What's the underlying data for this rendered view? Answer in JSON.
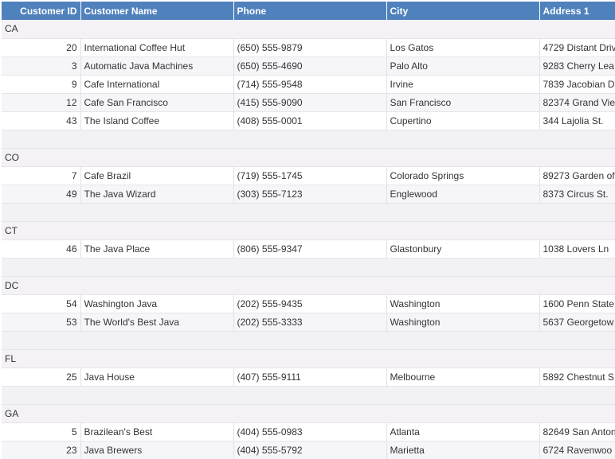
{
  "table": {
    "headers": [
      "Customer ID",
      "Customer Name",
      "Phone",
      "City",
      "Address 1"
    ],
    "groups": [
      {
        "label": "CA",
        "rows": [
          [
            20,
            "International Coffee Hut",
            "(650) 555-9879",
            "Los Gatos",
            "4729 Distant Driv"
          ],
          [
            3,
            "Automatic Java Machines",
            "(650) 555-4690",
            "Palo Alto",
            "9283 Cherry Lea"
          ],
          [
            9,
            "Cafe International",
            "(714) 555-9548",
            "Irvine",
            "7839 Jacobian D"
          ],
          [
            12,
            "Cafe San Francisco",
            "(415) 555-9090",
            "San Francisco",
            "82374 Grand Vie"
          ],
          [
            43,
            "The Island Coffee",
            "(408) 555-0001",
            "Cupertino",
            "344 Lajolia St."
          ]
        ]
      },
      {
        "label": "CO",
        "rows": [
          [
            7,
            "Cafe Brazil",
            "(719) 555-1745",
            "Colorado Springs",
            "89273 Garden of"
          ],
          [
            49,
            "The Java Wizard",
            "(303) 555-7123",
            "Englewood",
            "8373 Circus St."
          ]
        ]
      },
      {
        "label": "CT",
        "rows": [
          [
            46,
            "The Java Place",
            "(806) 555-9347",
            "Glastonbury",
            "1038 Lovers Ln"
          ]
        ]
      },
      {
        "label": "DC",
        "rows": [
          [
            54,
            "Washington Java",
            "(202) 555-9435",
            "Washington",
            "1600 Penn State"
          ],
          [
            53,
            "The World's Best Java",
            "(202) 555-3333",
            "Washington",
            "5637 Georgetow"
          ]
        ]
      },
      {
        "label": "FL",
        "rows": [
          [
            25,
            "Java House",
            "(407) 555-9111",
            "Melbourne",
            "5892 Chestnut S"
          ]
        ]
      },
      {
        "label": "GA",
        "rows": [
          [
            5,
            "Brazilean's Best",
            "(404) 555-0983",
            "Atlanta",
            "82649 San Anton"
          ],
          [
            23,
            "Java Brewers",
            "(404) 555-5792",
            "Marietta",
            "6724 Ravenwoo"
          ]
        ]
      }
    ]
  }
}
